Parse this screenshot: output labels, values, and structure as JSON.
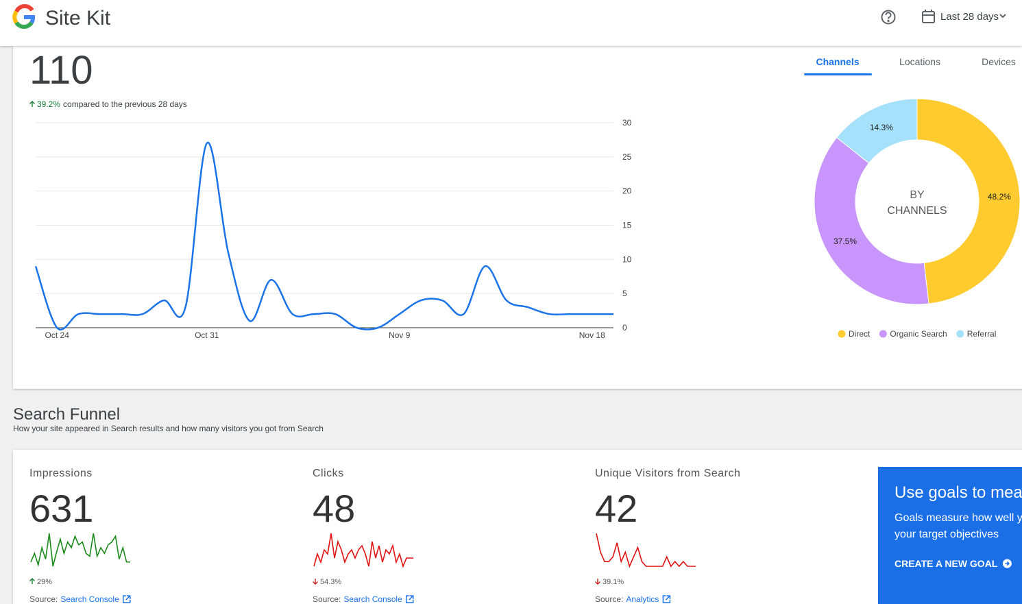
{
  "header": {
    "title": "Site Kit",
    "date_range": "Last 28 days"
  },
  "overview": {
    "total": 110,
    "change": "39.2%",
    "direction": "up",
    "change_note": "compared to the previous 28 days"
  },
  "tabs": {
    "items": [
      "Channels",
      "Locations",
      "Devices"
    ],
    "active": 0
  },
  "chart_data": [
    {
      "type": "line",
      "categories": [
        null,
        "Oct 24",
        null,
        null,
        null,
        null,
        null,
        null,
        "Oct 31",
        null,
        null,
        null,
        null,
        null,
        null,
        null,
        null,
        "Nov 9",
        null,
        null,
        null,
        null,
        null,
        null,
        null,
        null,
        "Nov 18",
        null
      ],
      "series": [
        {
          "color": "#1a73e8",
          "values": [
            9,
            0,
            2,
            2,
            2,
            2,
            4,
            3,
            27,
            11,
            1,
            7,
            2,
            2,
            2,
            0,
            0,
            2,
            4,
            4,
            2,
            9,
            4,
            3,
            2,
            2,
            2,
            2
          ]
        }
      ],
      "ylim": [
        0,
        30
      ],
      "yticks": [
        0,
        5,
        10,
        15,
        20,
        25,
        30
      ],
      "grid": true
    },
    {
      "type": "donut",
      "center_title": "BY",
      "center_subtitle": "CHANNELS",
      "categories": [
        "Direct",
        "Organic Search",
        "Referral"
      ],
      "values": [
        48.2,
        37.5,
        14.3
      ],
      "value_labels": [
        "48.2%",
        "37.5%",
        "14.3%"
      ],
      "colors": [
        "#ffcb2f",
        "#c795fb",
        "#a5e1fb"
      ],
      "legend": "bottom"
    }
  ],
  "funnel": {
    "title": "Search Funnel",
    "subtitle": "How your site appeared in Search results and how many visitors you got from Search",
    "metrics": [
      {
        "label": "Impressions",
        "value": 631,
        "change": "29%",
        "direction": "up",
        "source_label": "Source:",
        "source": "Search Console",
        "sparkline": {
          "color": "#1a8a1a",
          "values": [
            8,
            14,
            6,
            18,
            10,
            28,
            5,
            15,
            24,
            14,
            22,
            18,
            26,
            20,
            22,
            14,
            12,
            28,
            12,
            18,
            14,
            20,
            22,
            26,
            10,
            18,
            8,
            8
          ]
        }
      },
      {
        "label": "Clicks",
        "value": 48,
        "change": "54.3%",
        "direction": "down",
        "source_label": "Source:",
        "source": "Search Console",
        "sparkline": {
          "color": "#e01010",
          "values": [
            0,
            3,
            1,
            4,
            3,
            8,
            2,
            6,
            4,
            1,
            3,
            4,
            2,
            4,
            5,
            3,
            0,
            6,
            2,
            5,
            1,
            4,
            3,
            5,
            1,
            3,
            0,
            2,
            2,
            2
          ]
        }
      },
      {
        "label": "Unique Visitors from Search",
        "value": 42,
        "change": "39.1%",
        "direction": "down",
        "source_label": "Source:",
        "source": "Analytics",
        "sparkline": {
          "color": "#e01010",
          "values": [
            8,
            4,
            2,
            2,
            3,
            6,
            2,
            4,
            1,
            3,
            5,
            2,
            1,
            1,
            1,
            1,
            1,
            3,
            1,
            2,
            1,
            2,
            1,
            1,
            1
          ]
        }
      }
    ]
  },
  "goal_card": {
    "title": "Use goals to mea",
    "line1": "Goals measure how well y",
    "line2": "your target objectives",
    "cta": "CREATE A NEW GOAL"
  }
}
